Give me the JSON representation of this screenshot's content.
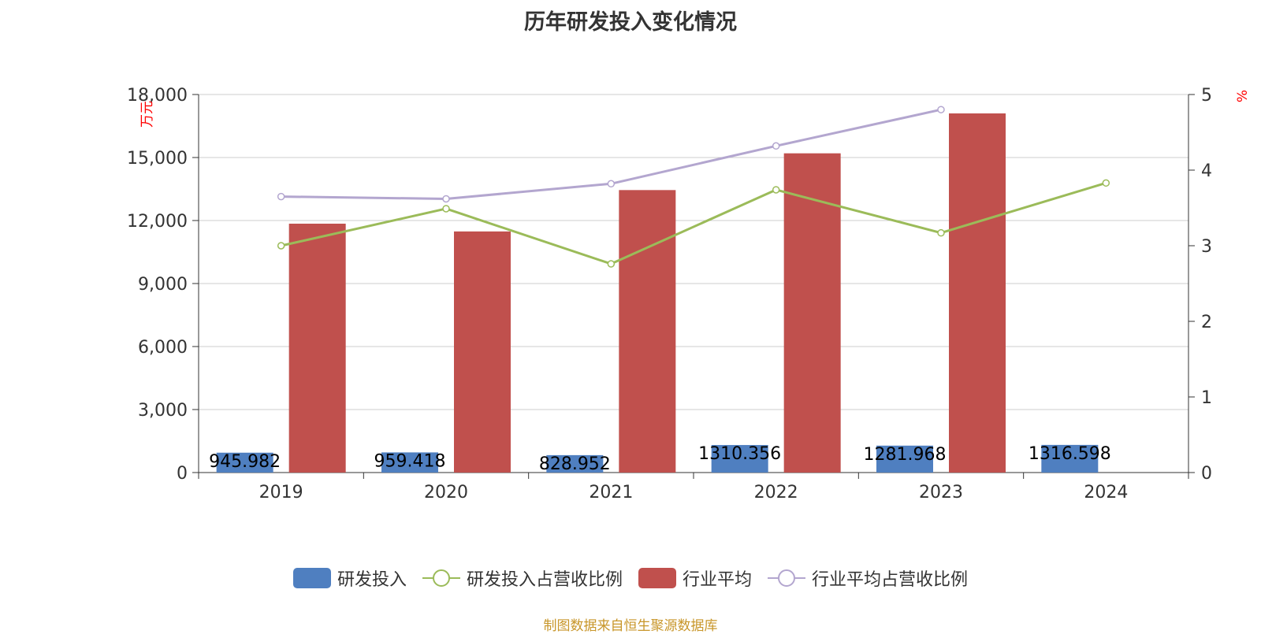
{
  "chart_data": {
    "type": "bar",
    "title": "历年研发投入变化情况",
    "categories": [
      "2019",
      "2020",
      "2021",
      "2022",
      "2023",
      "2024"
    ],
    "y_left": {
      "label": "万元",
      "ticks": [
        "0",
        "3,000",
        "6,000",
        "9,000",
        "12,000",
        "15,000",
        "18,000"
      ],
      "range": [
        0,
        18000
      ]
    },
    "y_right": {
      "label": "%",
      "ticks": [
        "0",
        "1",
        "2",
        "3",
        "4",
        "5"
      ],
      "range": [
        0,
        5
      ]
    },
    "series": [
      {
        "name": "研发投入",
        "type": "bar",
        "axis": "left",
        "color": "#4f7fc0",
        "values": [
          945.982,
          959.418,
          828.952,
          1310.356,
          1281.968,
          1316.598
        ],
        "labels": [
          "945.982",
          "959.418",
          "828.952",
          "1310.356",
          "1281.968",
          "1316.598"
        ]
      },
      {
        "name": "研发投入占营收比例",
        "type": "line",
        "axis": "right",
        "color": "#9bbb59",
        "values": [
          3.0,
          3.49,
          2.76,
          3.74,
          3.17,
          3.83
        ]
      },
      {
        "name": "行业平均",
        "type": "bar",
        "axis": "left",
        "color": "#c0504d",
        "values": [
          11850,
          11480,
          13450,
          15200,
          17100,
          null
        ]
      },
      {
        "name": "行业平均占营收比例",
        "type": "line",
        "axis": "right",
        "color": "#b3a6cf",
        "values": [
          3.65,
          3.62,
          3.82,
          4.32,
          4.8,
          null
        ]
      }
    ],
    "grid": true,
    "legend_position": "bottom"
  },
  "source": "制图数据来自恒生聚源数据库"
}
